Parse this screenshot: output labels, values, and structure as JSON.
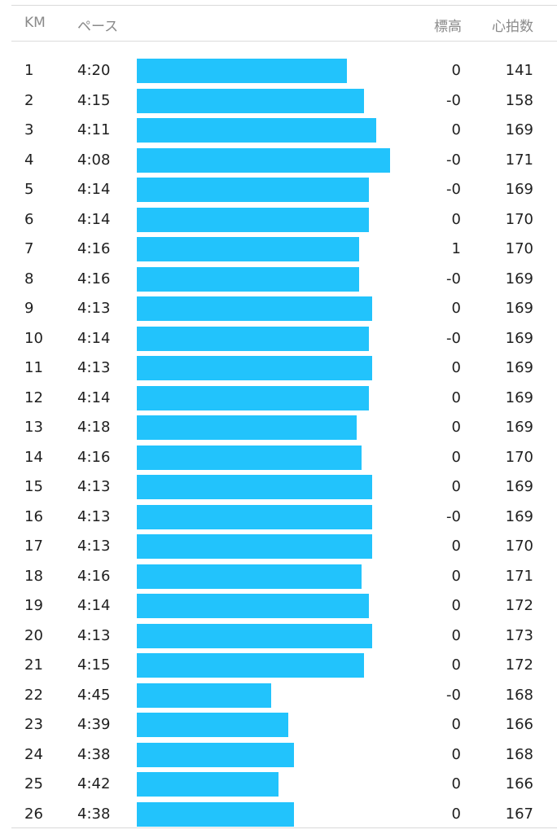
{
  "header": {
    "km": "KM",
    "pace": "ペース",
    "elevation": "標高",
    "heart_rate": "心拍数"
  },
  "colors": {
    "bar": "#22c3fc",
    "header_text": "#8a8a8a",
    "text": "#1f1f1f"
  },
  "splits": [
    {
      "km": "1",
      "pace": "4:20",
      "elev": "0",
      "hr": "141",
      "bar_fraction": 0.828
    },
    {
      "km": "2",
      "pace": "4:15",
      "elev": "-0",
      "hr": "158",
      "bar_fraction": 0.896
    },
    {
      "km": "3",
      "pace": "4:11",
      "elev": "0",
      "hr": "169",
      "bar_fraction": 0.946
    },
    {
      "km": "4",
      "pace": "4:08",
      "elev": "-0",
      "hr": "171",
      "bar_fraction": 1.0
    },
    {
      "km": "5",
      "pace": "4:14",
      "elev": "-0",
      "hr": "169",
      "bar_fraction": 0.917
    },
    {
      "km": "6",
      "pace": "4:14",
      "elev": "0",
      "hr": "170",
      "bar_fraction": 0.917
    },
    {
      "km": "7",
      "pace": "4:16",
      "elev": "1",
      "hr": "170",
      "bar_fraction": 0.877
    },
    {
      "km": "8",
      "pace": "4:16",
      "elev": "-0",
      "hr": "169",
      "bar_fraction": 0.877
    },
    {
      "km": "9",
      "pace": "4:13",
      "elev": "0",
      "hr": "169",
      "bar_fraction": 0.929
    },
    {
      "km": "10",
      "pace": "4:14",
      "elev": "-0",
      "hr": "169",
      "bar_fraction": 0.917
    },
    {
      "km": "11",
      "pace": "4:13",
      "elev": "0",
      "hr": "169",
      "bar_fraction": 0.929
    },
    {
      "km": "12",
      "pace": "4:14",
      "elev": "0",
      "hr": "169",
      "bar_fraction": 0.917
    },
    {
      "km": "13",
      "pace": "4:18",
      "elev": "0",
      "hr": "169",
      "bar_fraction": 0.867
    },
    {
      "km": "14",
      "pace": "4:16",
      "elev": "0",
      "hr": "170",
      "bar_fraction": 0.888
    },
    {
      "km": "15",
      "pace": "4:13",
      "elev": "0",
      "hr": "169",
      "bar_fraction": 0.929
    },
    {
      "km": "16",
      "pace": "4:13",
      "elev": "-0",
      "hr": "169",
      "bar_fraction": 0.929
    },
    {
      "km": "17",
      "pace": "4:13",
      "elev": "0",
      "hr": "170",
      "bar_fraction": 0.929
    },
    {
      "km": "18",
      "pace": "4:16",
      "elev": "0",
      "hr": "171",
      "bar_fraction": 0.888
    },
    {
      "km": "19",
      "pace": "4:14",
      "elev": "0",
      "hr": "172",
      "bar_fraction": 0.917
    },
    {
      "km": "20",
      "pace": "4:13",
      "elev": "0",
      "hr": "173",
      "bar_fraction": 0.929
    },
    {
      "km": "21",
      "pace": "4:15",
      "elev": "0",
      "hr": "172",
      "bar_fraction": 0.896
    },
    {
      "km": "22",
      "pace": "4:45",
      "elev": "-0",
      "hr": "168",
      "bar_fraction": 0.529
    },
    {
      "km": "23",
      "pace": "4:39",
      "elev": "0",
      "hr": "166",
      "bar_fraction": 0.598
    },
    {
      "km": "24",
      "pace": "4:38",
      "elev": "0",
      "hr": "168",
      "bar_fraction": 0.619
    },
    {
      "km": "25",
      "pace": "4:42",
      "elev": "0",
      "hr": "166",
      "bar_fraction": 0.558
    },
    {
      "km": "26",
      "pace": "4:38",
      "elev": "0",
      "hr": "167",
      "bar_fraction": 0.619
    }
  ]
}
